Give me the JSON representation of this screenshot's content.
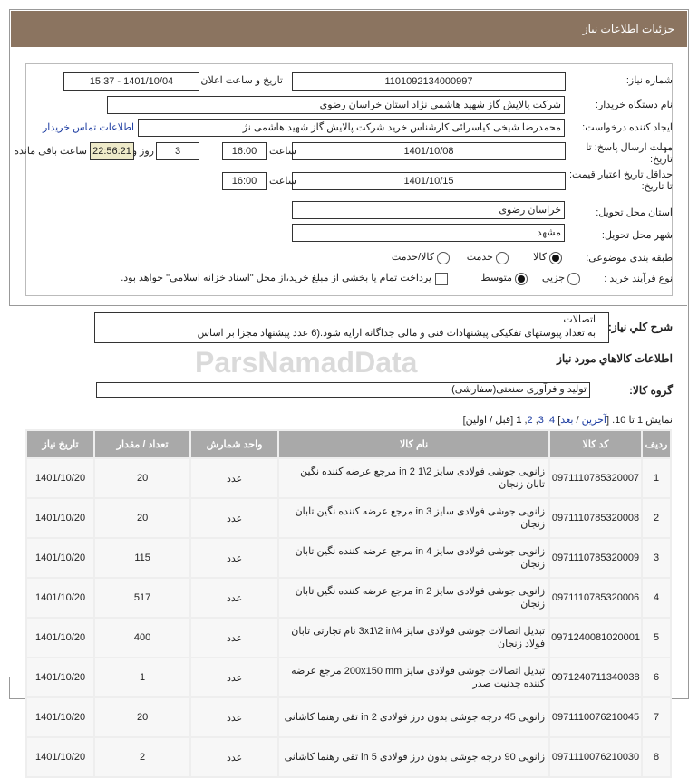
{
  "header": {
    "title": "جزئیات اطلاعات نیاز"
  },
  "form": {
    "need_number_label": "شماره نیاز:",
    "need_number": "1101092134000997",
    "announce_label": "تاریخ و ساعت اعلان عمومی:",
    "announce_value": "1401/10/04 - 15:37",
    "buyer_label": "نام دستگاه خریدار:",
    "buyer_value": "شرکت پالایش گاز شهید هاشمی نژاد   استان خراسان رضوی",
    "creator_label": "ایجاد کننده درخواست:",
    "creator_value": "محمدرضا شیخی کیاسرائی کارشناس خرید شرکت پالایش گاز شهید هاشمی نژ",
    "contact_link": "اطلاعات تماس خریدار",
    "deadline_label": "مهلت ارسال پاسخ: تا تاریخ:",
    "deadline_date": "1401/10/08",
    "time_label": "ساعت",
    "deadline_time": "16:00",
    "days": "3",
    "days_label": "روز و",
    "remaining": "22:56:21",
    "remaining_label": "ساعت باقی مانده",
    "validity_label": "حداقل تاریخ اعتبار قیمت: تا تاریخ:",
    "validity_date": "1401/10/15",
    "validity_time": "16:00",
    "province_label": "استان محل تحویل:",
    "province": "خراسان رضوی",
    "city_label": "شهر محل تحویل:",
    "city": "مشهد",
    "category_label": "طبقه بندی موضوعی:",
    "category_options": [
      "کالا",
      "خدمت",
      "کالا/خدمت"
    ],
    "category_selected": "کالا",
    "process_label": "نوع فرآیند خرید :",
    "process_options": [
      "جزیی",
      "متوسط"
    ],
    "process_selected": "متوسط",
    "payment_note": "پرداخت تمام یا بخشی از مبلغ خرید،از محل \"اسناد خزانه اسلامی\" خواهد بود."
  },
  "description": {
    "label": "شرح کلي نياز:",
    "line1": "اتصالات",
    "line2": "به تعداد پیوستهای تفکیکی پیشنهادات فنی و مالی جداگانه ارایه شود.(6 عدد پیشنهاد مجزا بر اساس"
  },
  "goods": {
    "section_title": "اطلاعات کالاهاي مورد نياز",
    "group_label": "گروه کالا:",
    "group_value": "تولید و فرآوری صنعتی(سفارشی)"
  },
  "pagination": {
    "showing": "نمایش 1 تا 10. [",
    "last": "آخرین",
    "sep1": " / ",
    "next": "بعد",
    "close": "] ",
    "p4": "4",
    "p3": "3",
    "p2": "2",
    "p1": "1",
    "prevfirst": " [قبل / اولین]"
  },
  "table": {
    "headers": [
      "ردیف",
      "کد کالا",
      "نام کالا",
      "واحد شمارش",
      "تعداد / مقدار",
      "تاریخ نیاز"
    ],
    "rows": [
      [
        "1",
        "0971110785320007",
        "زانویی جوشی فولادی سایز 2\\1 2 in مرجع عرضه کننده نگین تابان زنجان",
        "عدد",
        "20",
        "1401/10/20"
      ],
      [
        "2",
        "0971110785320008",
        "زانویی جوشی فولادی سایز 3 in مرجع عرضه کننده نگین تابان زنجان",
        "عدد",
        "20",
        "1401/10/20"
      ],
      [
        "3",
        "0971110785320009",
        "زانویی جوشی فولادی سایز 4 in مرجع عرضه کننده نگین تابان زنجان",
        "عدد",
        "115",
        "1401/10/20"
      ],
      [
        "4",
        "0971110785320006",
        "زانویی جوشی فولادی سایز 2 in مرجع عرضه کننده نگین تابان زنجان",
        "عدد",
        "517",
        "1401/10/20"
      ],
      [
        "5",
        "0971240081020001",
        "تبدیل اتصالات جوشی فولادی سایز 4\\3x1\\2 in نام تجارتی تابان فولاد زنجان",
        "عدد",
        "400",
        "1401/10/20"
      ],
      [
        "6",
        "0971240711340038",
        "تبدیل اتصالات جوشی فولادی سایز 200x150 mm مرجع عرضه کننده چدنیت صدر",
        "عدد",
        "1",
        "1401/10/20"
      ],
      [
        "7",
        "0971110076210045",
        "زانویی 45 درجه جوشی بدون درز فولادی 2 in تقی رهنما کاشانی",
        "عدد",
        "20",
        "1401/10/20"
      ],
      [
        "8",
        "0971110076210030",
        "زانویی 90 درجه جوشی بدون درز فولادی 5 in تقی رهنما کاشانی",
        "عدد",
        "2",
        "1401/10/20"
      ]
    ]
  },
  "watermark": "ParsNamadData"
}
